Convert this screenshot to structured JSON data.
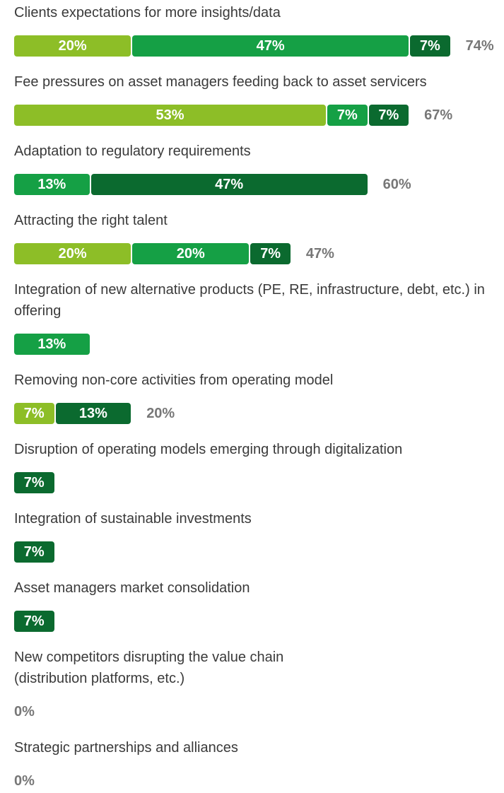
{
  "chart_data": {
    "type": "bar",
    "orientation": "horizontal",
    "stacked": true,
    "categories": [
      "Clients expectations for more insights/data",
      "Fee pressures on asset managers feeding back to asset servicers",
      "Adaptation to regulatory requirements",
      "Attracting the right talent",
      "Integration of new alternative products (PE, RE, infrastructure, debt, etc.) in offering",
      "Removing non-core activities from operating model",
      "Disruption of operating models emerging through digitalization",
      "Integration of sustainable investments",
      "Asset managers market consolidation",
      "New competitors disrupting the value chain\n(distribution platforms, etc.)",
      "Strategic partnerships and alliances"
    ],
    "series": [
      {
        "color": "#8dbe27",
        "values": [
          20,
          53,
          null,
          20,
          null,
          7,
          null,
          null,
          null,
          null,
          null
        ],
        "value_labels": [
          "20%",
          "53%",
          null,
          "20%",
          null,
          "7%",
          null,
          null,
          null,
          null,
          null
        ]
      },
      {
        "color": "#15a045",
        "values": [
          47,
          7,
          13,
          20,
          13,
          null,
          null,
          null,
          null,
          null,
          null
        ],
        "value_labels": [
          "47%",
          "7%",
          "13%",
          "20%",
          "13%",
          null,
          null,
          null,
          null,
          null,
          null
        ]
      },
      {
        "color": "#0b6a2f",
        "values": [
          7,
          7,
          47,
          7,
          null,
          13,
          7,
          7,
          7,
          null,
          null
        ],
        "value_labels": [
          "7%",
          "7%",
          "47%",
          "7%",
          null,
          "13%",
          "7%",
          "7%",
          "7%",
          null,
          null
        ]
      }
    ],
    "totals": [
      74,
      67,
      60,
      47,
      null,
      20,
      null,
      null,
      null,
      0,
      0
    ],
    "total_labels": [
      "74%",
      "67%",
      "60%",
      "47%",
      null,
      "20%",
      null,
      null,
      null,
      "0%",
      "0%"
    ],
    "xlim": [
      0,
      100
    ]
  }
}
